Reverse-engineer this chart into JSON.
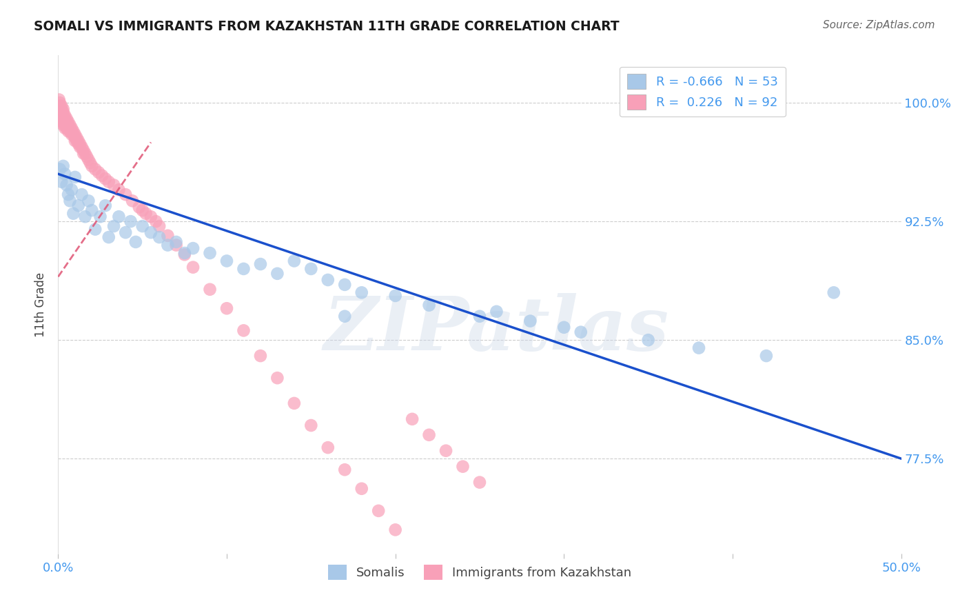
{
  "title": "SOMALI VS IMMIGRANTS FROM KAZAKHSTAN 11TH GRADE CORRELATION CHART",
  "source": "Source: ZipAtlas.com",
  "ylabel": "11th Grade",
  "ytick_labels": [
    "77.5%",
    "85.0%",
    "92.5%",
    "100.0%"
  ],
  "ytick_values": [
    0.775,
    0.85,
    0.925,
    1.0
  ],
  "xlim": [
    0.0,
    0.5
  ],
  "ylim": [
    0.715,
    1.03
  ],
  "legend_blue_r": "-0.666",
  "legend_blue_n": "53",
  "legend_pink_r": "0.226",
  "legend_pink_n": "92",
  "blue_color": "#a8c8e8",
  "pink_color": "#f8a0b8",
  "blue_line_color": "#1a50cc",
  "pink_line_color": "#e05575",
  "watermark": "ZIPatlas",
  "blue_line_x0": 0.0,
  "blue_line_y0": 0.955,
  "blue_line_x1": 0.5,
  "blue_line_y1": 0.775,
  "pink_line_x0": 0.0,
  "pink_line_y0": 0.89,
  "pink_line_x1": 0.055,
  "pink_line_y1": 0.975,
  "blue_scatter_x": [
    0.001,
    0.002,
    0.003,
    0.004,
    0.005,
    0.006,
    0.007,
    0.008,
    0.009,
    0.01,
    0.012,
    0.014,
    0.016,
    0.018,
    0.02,
    0.022,
    0.025,
    0.028,
    0.03,
    0.033,
    0.036,
    0.04,
    0.043,
    0.046,
    0.05,
    0.055,
    0.06,
    0.065,
    0.07,
    0.075,
    0.08,
    0.09,
    0.1,
    0.11,
    0.12,
    0.13,
    0.14,
    0.15,
    0.16,
    0.17,
    0.18,
    0.2,
    0.22,
    0.25,
    0.28,
    0.31,
    0.35,
    0.38,
    0.42,
    0.46,
    0.3,
    0.26,
    0.17
  ],
  "blue_scatter_y": [
    0.958,
    0.95,
    0.96,
    0.955,
    0.948,
    0.942,
    0.938,
    0.945,
    0.93,
    0.953,
    0.935,
    0.942,
    0.928,
    0.938,
    0.932,
    0.92,
    0.928,
    0.935,
    0.915,
    0.922,
    0.928,
    0.918,
    0.925,
    0.912,
    0.922,
    0.918,
    0.915,
    0.91,
    0.912,
    0.905,
    0.908,
    0.905,
    0.9,
    0.895,
    0.898,
    0.892,
    0.9,
    0.895,
    0.888,
    0.885,
    0.88,
    0.878,
    0.872,
    0.865,
    0.862,
    0.855,
    0.85,
    0.845,
    0.84,
    0.88,
    0.858,
    0.868,
    0.865
  ],
  "pink_scatter_x": [
    0.0005,
    0.001,
    0.001,
    0.001,
    0.001,
    0.001,
    0.002,
    0.002,
    0.002,
    0.002,
    0.002,
    0.002,
    0.003,
    0.003,
    0.003,
    0.003,
    0.003,
    0.003,
    0.004,
    0.004,
    0.004,
    0.004,
    0.004,
    0.005,
    0.005,
    0.005,
    0.005,
    0.006,
    0.006,
    0.006,
    0.006,
    0.007,
    0.007,
    0.007,
    0.008,
    0.008,
    0.008,
    0.009,
    0.009,
    0.01,
    0.01,
    0.01,
    0.011,
    0.011,
    0.012,
    0.012,
    0.013,
    0.013,
    0.014,
    0.015,
    0.015,
    0.016,
    0.017,
    0.018,
    0.019,
    0.02,
    0.022,
    0.024,
    0.026,
    0.028,
    0.03,
    0.033,
    0.036,
    0.04,
    0.044,
    0.048,
    0.05,
    0.052,
    0.055,
    0.058,
    0.06,
    0.065,
    0.07,
    0.075,
    0.08,
    0.09,
    0.1,
    0.11,
    0.12,
    0.13,
    0.14,
    0.15,
    0.16,
    0.17,
    0.18,
    0.19,
    0.2,
    0.21,
    0.22,
    0.23,
    0.24,
    0.25
  ],
  "pink_scatter_y": [
    1.002,
    1.0,
    0.998,
    0.996,
    0.994,
    0.992,
    0.998,
    0.996,
    0.994,
    0.992,
    0.99,
    0.988,
    0.996,
    0.994,
    0.992,
    0.99,
    0.988,
    0.986,
    0.992,
    0.99,
    0.988,
    0.986,
    0.984,
    0.99,
    0.988,
    0.986,
    0.984,
    0.988,
    0.986,
    0.984,
    0.982,
    0.986,
    0.984,
    0.982,
    0.984,
    0.982,
    0.98,
    0.982,
    0.98,
    0.98,
    0.978,
    0.976,
    0.978,
    0.976,
    0.976,
    0.974,
    0.974,
    0.972,
    0.972,
    0.97,
    0.968,
    0.968,
    0.966,
    0.964,
    0.962,
    0.96,
    0.958,
    0.956,
    0.954,
    0.952,
    0.95,
    0.948,
    0.945,
    0.942,
    0.938,
    0.934,
    0.932,
    0.93,
    0.928,
    0.925,
    0.922,
    0.916,
    0.91,
    0.904,
    0.896,
    0.882,
    0.87,
    0.856,
    0.84,
    0.826,
    0.81,
    0.796,
    0.782,
    0.768,
    0.756,
    0.742,
    0.73,
    0.8,
    0.79,
    0.78,
    0.77,
    0.76
  ]
}
